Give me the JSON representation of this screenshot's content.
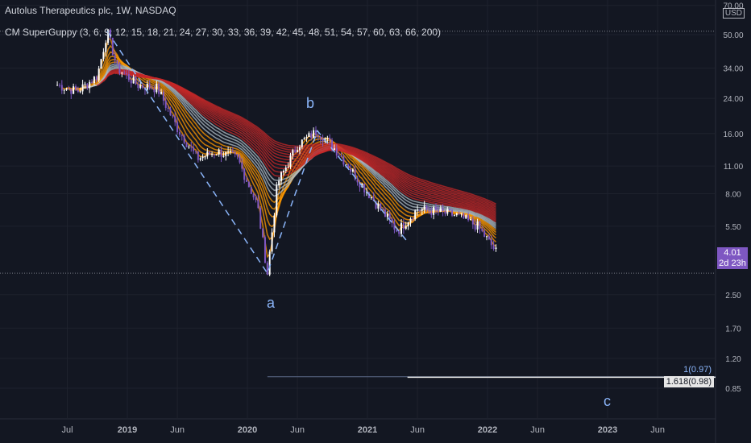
{
  "header": {
    "title": "Autolus Therapeutics plc, 1W, NASDAQ",
    "indicator": "CM SuperGuppy (3, 6, 9, 12, 15, 18, 21, 24, 27, 30, 33, 36, 39, 42, 45, 48, 51, 54, 57, 60, 63, 66, 200)"
  },
  "currency": "USD",
  "price_now": "4.01",
  "countdown": "2d 23h",
  "fib": {
    "level1": "1(0.97)",
    "level2": "1.618(0.98)"
  },
  "waves": {
    "a": "a",
    "b": "b",
    "c": "c"
  },
  "colors": {
    "bg": "#131722",
    "up": "#ffffff",
    "down": "#7e57c2",
    "guppy_bear": "#c62828",
    "guppy_neutral": "#9e9e9e",
    "guppy_fast": "#ff9800",
    "wave": "#8ab4f8"
  },
  "chart_data": {
    "type": "line",
    "yscale": "log",
    "ylim": [
      0.72,
      70
    ],
    "y_ticks": [
      "70.00",
      "50.00",
      "34.00",
      "24.00",
      "16.00",
      "11.00",
      "8.00",
      "5.50",
      "2.50",
      "1.70",
      "1.20",
      "0.85"
    ],
    "x_ticks": [
      "Jul",
      "2019",
      "Jun",
      "2020",
      "Jun",
      "2021",
      "Jun",
      "2022",
      "Jun",
      "2023",
      "Jun"
    ],
    "series": [
      {
        "values": [
          {
            "x": "2018-06",
            "y": 28
          },
          {
            "x": "2018-08",
            "y": 26
          },
          {
            "x": "2018-10",
            "y": 31
          },
          {
            "x": "2018-11",
            "y": 52
          },
          {
            "x": "2018-12",
            "y": 34
          },
          {
            "x": "2019-02",
            "y": 28
          },
          {
            "x": "2019-04",
            "y": 27
          },
          {
            "x": "2019-06",
            "y": 17
          },
          {
            "x": "2019-08",
            "y": 12
          },
          {
            "x": "2019-10",
            "y": 13
          },
          {
            "x": "2019-12",
            "y": 12
          },
          {
            "x": "2020-02",
            "y": 7
          },
          {
            "x": "2020-03",
            "y": 3.2
          },
          {
            "x": "2020-04",
            "y": 9
          },
          {
            "x": "2020-06",
            "y": 14
          },
          {
            "x": "2020-08",
            "y": 16.5
          },
          {
            "x": "2020-10",
            "y": 13
          },
          {
            "x": "2020-12",
            "y": 9.5
          },
          {
            "x": "2021-02",
            "y": 7
          },
          {
            "x": "2021-04",
            "y": 5.2
          },
          {
            "x": "2021-06",
            "y": 6.7
          },
          {
            "x": "2021-08",
            "y": 6.5
          },
          {
            "x": "2021-10",
            "y": 6.2
          },
          {
            "x": "2021-12",
            "y": 5.5
          },
          {
            "x": "2022-02",
            "y": 4.01
          }
        ]
      }
    ],
    "fib_levels": [
      0.97,
      0.98
    ],
    "wave_points": [
      {
        "label": "a",
        "x": "2020-03",
        "y": 3.2
      },
      {
        "label": "b",
        "x": "2020-08",
        "y": 16.5
      },
      {
        "label": "c",
        "x": "2022-12",
        "y": 0.8
      }
    ],
    "grid": true
  }
}
